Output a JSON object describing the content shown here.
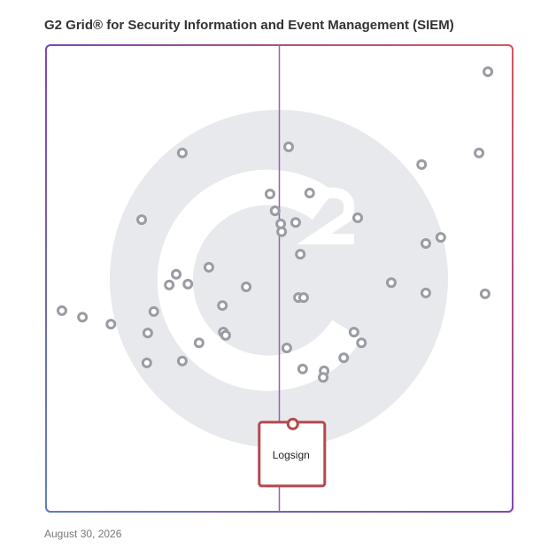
{
  "chart_data": {
    "type": "scatter",
    "title": "G2 Grid® for Security Information and Event Management (SIEM)",
    "date": "August 30, 2026",
    "xlim": [
      0,
      100
    ],
    "ylim": [
      0,
      100
    ],
    "color": "#9a9ca3",
    "x": [
      94.7,
      52.0,
      29.2,
      80.5,
      92.8,
      48.0,
      56.5,
      20.5,
      49.1,
      66.8,
      53.5,
      50.3,
      50.5,
      84.6,
      81.4,
      54.5,
      34.9,
      27.9,
      26.4,
      30.4,
      42.9,
      74.0,
      81.4,
      94.1,
      54.1,
      55.2,
      3.4,
      7.8,
      23.1,
      37.8,
      13.9,
      21.8,
      38.0,
      38.5,
      66.0,
      67.6,
      32.8,
      51.6,
      63.8,
      21.6,
      29.2,
      55.0,
      59.6,
      59.4
    ],
    "values": [
      94.3,
      78.2,
      76.9,
      74.4,
      76.9,
      68.1,
      68.3,
      62.6,
      64.5,
      63.0,
      62.0,
      61.7,
      60.0,
      58.8,
      57.5,
      55.2,
      52.4,
      50.9,
      48.6,
      48.8,
      48.2,
      49.1,
      46.9,
      46.7,
      45.9,
      45.9,
      43.1,
      41.7,
      42.9,
      44.2,
      40.2,
      38.3,
      38.5,
      37.8,
      38.5,
      36.2,
      36.2,
      35.1,
      33.0,
      31.9,
      32.3,
      30.6,
      30.2,
      28.8
    ],
    "highlight": {
      "label": "Logsign",
      "x": 52.9,
      "value": 18.8,
      "color": "#b5484e"
    }
  }
}
